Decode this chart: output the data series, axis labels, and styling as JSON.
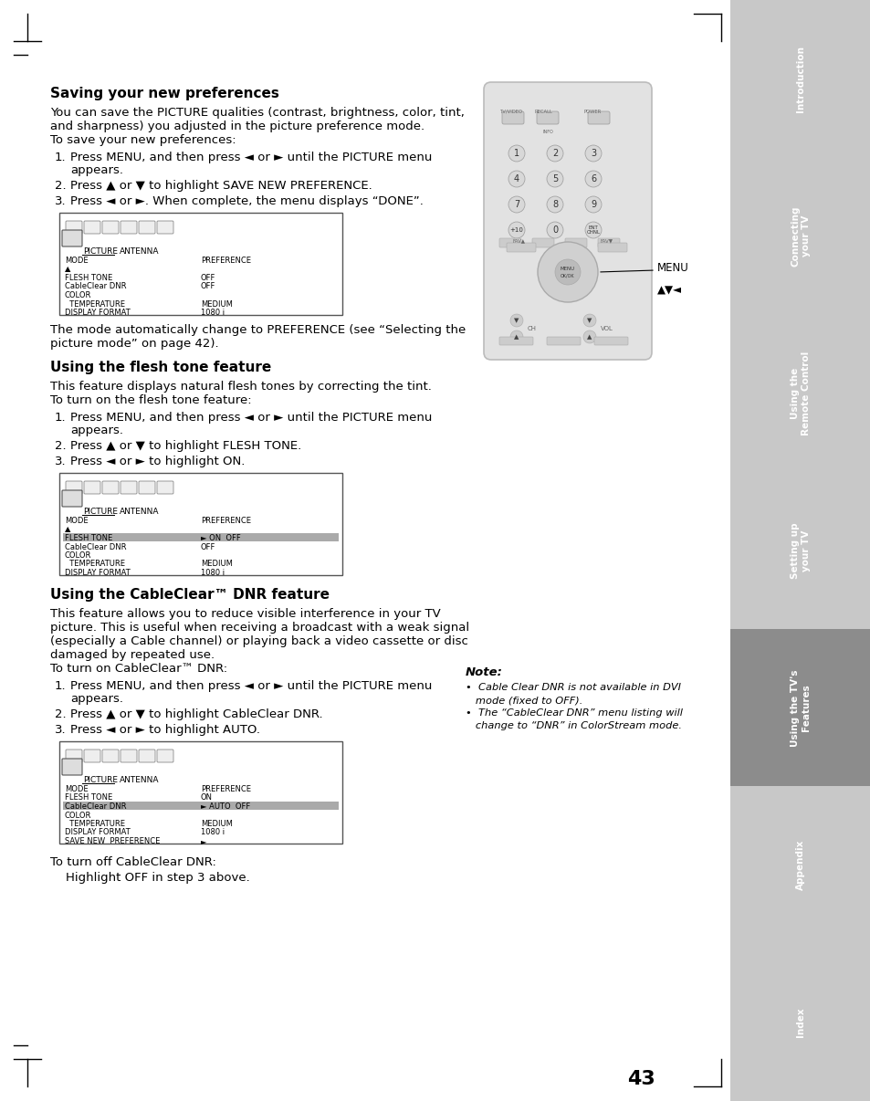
{
  "page_bg": "#ffffff",
  "page_num": "43",
  "sidebar_color": "#c8c8c8",
  "sidebar_active_color": "#8c8c8c",
  "sidebar_labels": [
    "Introduction",
    "Connecting\nyour TV",
    "Using the\nRemote Control",
    "Setting up\nyour TV",
    "Using the TV's\nFeatures",
    "Appendix",
    "Index"
  ],
  "sidebar_active_index": 4,
  "title1": "Saving your new preferences",
  "body1_lines": [
    "You can save the PICTURE qualities (contrast, brightness, color, tint,",
    "and sharpness) you adjusted in the picture preference mode.",
    "To save your new preferences:"
  ],
  "steps1": [
    "Press MENU, and then press ◄ or ► until the PICTURE menu\nappears.",
    "Press ▲ or ▼ to highlight SAVE NEW PREFERENCE.",
    "Press ◄ or ►. When complete, the menu displays “DONE”."
  ],
  "menu_note1": "The mode automatically change to PREFERENCE (see “Selecting the\npicture mode” on page 42).",
  "title2": "Using the flesh tone feature",
  "body2_lines": [
    "This feature displays natural flesh tones by correcting the tint.",
    "To turn on the flesh tone feature:"
  ],
  "steps2": [
    "Press MENU, and then press ◄ or ► until the PICTURE menu\nappears.",
    "Press ▲ or ▼ to highlight FLESH TONE.",
    "Press ◄ or ► to highlight ON."
  ],
  "title3": "Using the CableClear™ DNR feature",
  "body3_lines": [
    "This feature allows you to reduce visible interference in your TV",
    "picture. This is useful when receiving a broadcast with a weak signal",
    "(especially a Cable channel) or playing back a video cassette or disc",
    "damaged by repeated use.",
    "To turn on CableClear™ DNR:"
  ],
  "steps3": [
    "Press MENU, and then press ◄ or ► until the PICTURE menu\nappears.",
    "Press ▲ or ▼ to highlight CableClear DNR.",
    "Press ◄ or ► to highlight AUTO."
  ],
  "body3_end": [
    "To turn off CableClear DNR:",
    "    Highlight OFF in step 3 above."
  ],
  "note_title": "Note:",
  "note_lines": [
    "•  Cable Clear DNR is not available in DVI\n   mode (fixed to OFF).",
    "•  The “CableClear DNR” menu listing will\n   change to “DNR” in ColorStream mode."
  ]
}
